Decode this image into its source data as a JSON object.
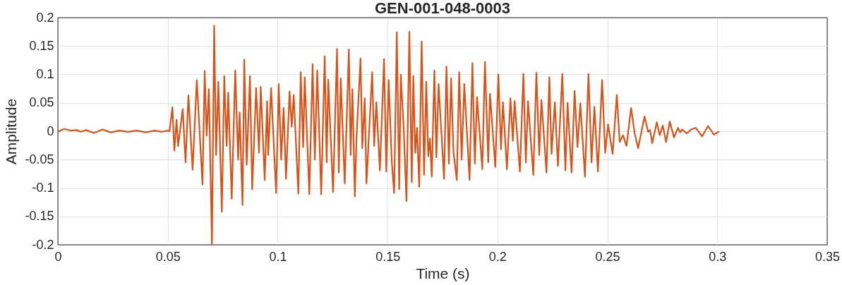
{
  "chart_data": {
    "type": "line",
    "title": "GEN-001-048-0003",
    "xlabel": "Time (s)",
    "ylabel": "Amplitude",
    "color": "#d95319",
    "line_style": "solid",
    "grid": true,
    "xlim": [
      0,
      0.35
    ],
    "ylim": [
      -0.2,
      0.2
    ],
    "xticks": [
      0,
      0.05,
      0.1,
      0.15,
      0.2,
      0.25,
      0.3,
      0.35
    ],
    "yticks": [
      -0.2,
      -0.15,
      -0.1,
      -0.05,
      0,
      0.05,
      0.1,
      0.15,
      0.2
    ],
    "x": [
      0,
      0.0029,
      0.006,
      0.0085,
      0.0105,
      0.0128,
      0.0164,
      0.0203,
      0.024,
      0.028,
      0.032,
      0.036,
      0.04,
      0.044,
      0.0475,
      0.0495,
      0.0508,
      0.0521,
      0.053,
      0.054,
      0.0547,
      0.0568,
      0.0581,
      0.0594,
      0.0613,
      0.0632,
      0.0658,
      0.0668,
      0.0677,
      0.0687,
      0.0701,
      0.0711,
      0.072,
      0.073,
      0.0746,
      0.0757,
      0.0768,
      0.0775,
      0.0791,
      0.0807,
      0.082,
      0.0827,
      0.084,
      0.0848,
      0.0859,
      0.0874,
      0.0884,
      0.0902,
      0.0915,
      0.0923,
      0.0941,
      0.0952,
      0.0957,
      0.097,
      0.0993,
      0.1005,
      0.1016,
      0.1027,
      0.1038,
      0.1054,
      0.1064,
      0.1073,
      0.1094,
      0.1105,
      0.1116,
      0.1123,
      0.1144,
      0.1159,
      0.1169,
      0.118,
      0.1198,
      0.1214,
      0.1223,
      0.123,
      0.1252,
      0.127,
      0.1278,
      0.1287,
      0.1305,
      0.1324,
      0.1332,
      0.134,
      0.1351,
      0.1358,
      0.1377,
      0.1385,
      0.1396,
      0.1404,
      0.143,
      0.1439,
      0.1449,
      0.1465,
      0.1484,
      0.1494,
      0.1505,
      0.1519,
      0.153,
      0.1542,
      0.1553,
      0.156,
      0.1573,
      0.1586,
      0.1599,
      0.161,
      0.1617,
      0.1626,
      0.1634,
      0.1644,
      0.1655,
      0.1666,
      0.1676,
      0.1685,
      0.1693,
      0.1701,
      0.1713,
      0.1722,
      0.1732,
      0.1757,
      0.1768,
      0.1779,
      0.1789,
      0.18,
      0.1815,
      0.1826,
      0.1837,
      0.1849,
      0.1873,
      0.1886,
      0.1897,
      0.1907,
      0.1931,
      0.1943,
      0.1958,
      0.1966,
      0.199,
      0.2004,
      0.2016,
      0.2025,
      0.2043,
      0.2059,
      0.207,
      0.2078,
      0.2102,
      0.2118,
      0.2129,
      0.2139,
      0.2163,
      0.2177,
      0.219,
      0.22,
      0.2223,
      0.2236,
      0.2246,
      0.2261,
      0.2275,
      0.2295,
      0.2309,
      0.2319,
      0.2337,
      0.2351,
      0.2364,
      0.2377,
      0.2398,
      0.2414,
      0.2428,
      0.2441,
      0.2457,
      0.2476,
      0.249,
      0.2503,
      0.2524,
      0.2543,
      0.2556,
      0.2571,
      0.2587,
      0.2608,
      0.2624,
      0.264,
      0.2669,
      0.2685,
      0.2694,
      0.2704,
      0.2725,
      0.2738,
      0.2752,
      0.2767,
      0.2784,
      0.2803,
      0.2821,
      0.2831,
      0.284,
      0.2861,
      0.2881,
      0.2902,
      0.2931,
      0.2958,
      0.2985,
      0.3006
    ],
    "values": [
      -0.001,
      0.004,
      0.001,
      0.002,
      -0.001,
      0.002,
      -0.003,
      0.003,
      -0.002,
      0.001,
      -0.001,
      0.001,
      -0.002,
      0.001,
      -0.001,
      0.001,
      0.0,
      0.042,
      -0.034,
      0.02,
      -0.026,
      0.039,
      -0.055,
      0.063,
      -0.068,
      0.09,
      -0.094,
      0.106,
      -0.008,
      0.074,
      -0.2,
      0.186,
      -0.042,
      0.087,
      -0.142,
      0.097,
      -0.026,
      0.068,
      -0.119,
      0.107,
      -0.05,
      0.033,
      -0.13,
      0.126,
      -0.059,
      0.097,
      -0.102,
      0.076,
      -0.038,
      0.078,
      -0.086,
      0.053,
      -0.042,
      0.076,
      -0.109,
      0.083,
      -0.05,
      0.041,
      -0.084,
      0.07,
      0.008,
      0.064,
      -0.11,
      0.104,
      -0.028,
      0.095,
      -0.111,
      0.118,
      -0.05,
      0.107,
      -0.111,
      0.132,
      -0.055,
      0.091,
      -0.107,
      0.145,
      -0.073,
      0.093,
      -0.092,
      0.144,
      -0.042,
      0.074,
      -0.115,
      -0.017,
      0.128,
      -0.03,
      0.058,
      -0.092,
      0.104,
      -0.026,
      0.051,
      -0.069,
      0.127,
      -0.071,
      0.09,
      -0.053,
      -0.109,
      0.174,
      -0.102,
      0.1,
      0.008,
      -0.123,
      0.175,
      -0.09,
      0.097,
      -0.038,
      0.006,
      -0.098,
      0.158,
      -0.077,
      0.087,
      -0.044,
      -0.013,
      -0.08,
      0.107,
      -0.046,
      0.083,
      -0.084,
      0.114,
      -0.057,
      0.093,
      -0.038,
      -0.086,
      0.104,
      -0.05,
      0.083,
      -0.086,
      0.12,
      -0.057,
      0.06,
      -0.067,
      0.122,
      -0.055,
      0.066,
      -0.063,
      0.1,
      -0.032,
      0.051,
      -0.067,
      0.058,
      -0.017,
      0.053,
      -0.071,
      0.101,
      -0.055,
      0.053,
      -0.077,
      0.103,
      -0.042,
      0.055,
      -0.073,
      0.095,
      -0.04,
      0.051,
      -0.061,
      0.101,
      -0.069,
      0.05,
      -0.073,
      0.071,
      -0.028,
      0.049,
      -0.08,
      0.101,
      -0.055,
      0.043,
      -0.071,
      0.09,
      -0.038,
      0.012,
      -0.04,
      0.064,
      -0.019,
      -0.007,
      -0.026,
      0.041,
      -0.003,
      -0.03,
      0.026,
      -0.001,
      0.002,
      -0.021,
      0.016,
      -0.007,
      0.01,
      -0.019,
      0.017,
      -0.011,
      0.006,
      -0.002,
      0.003,
      -0.004,
      0.003,
      0.006,
      -0.009,
      0.009,
      -0.006,
      -0.001
    ]
  }
}
